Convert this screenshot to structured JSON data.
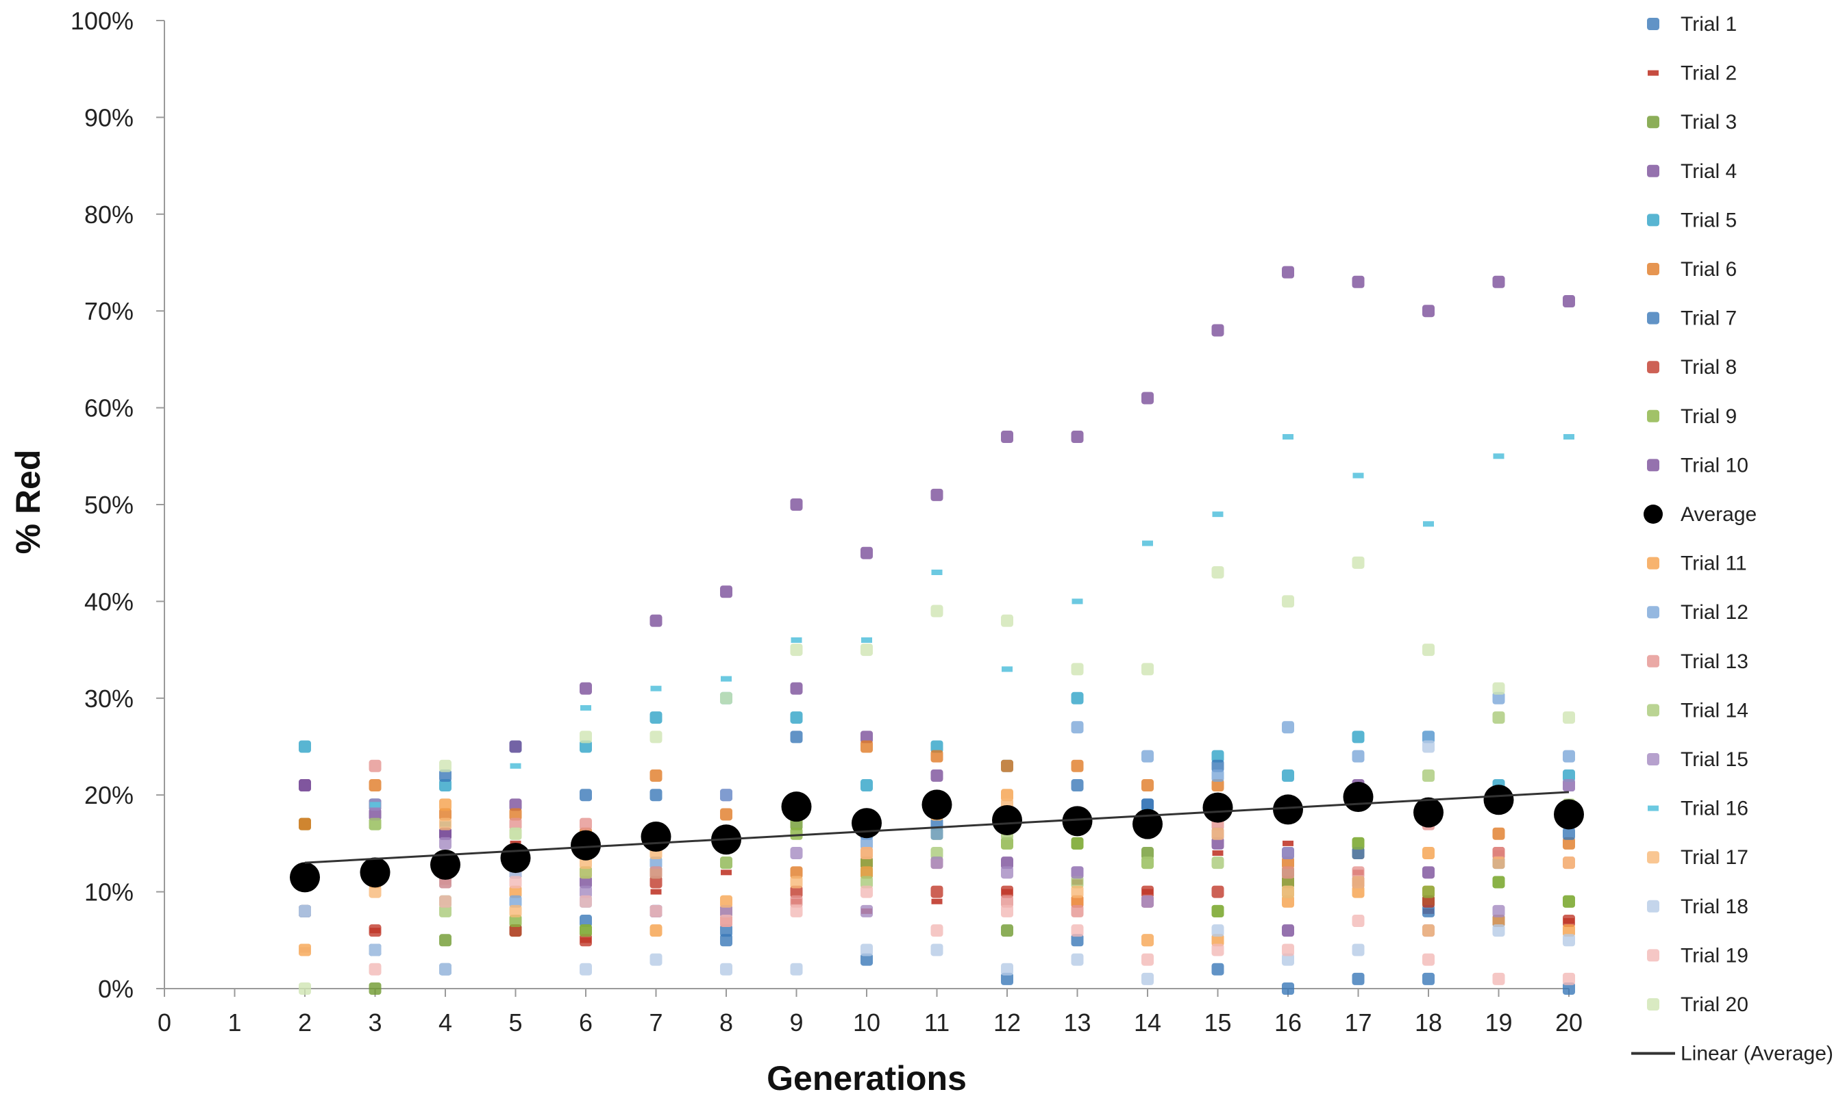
{
  "chart_data": {
    "type": "scatter",
    "xlabel": "Generations",
    "ylabel": "% Red",
    "xlim": [
      0,
      20
    ],
    "ylim": [
      0,
      100
    ],
    "x_ticks": [
      0,
      1,
      2,
      3,
      4,
      5,
      6,
      7,
      8,
      9,
      10,
      11,
      12,
      13,
      14,
      15,
      16,
      17,
      18,
      19,
      20
    ],
    "y_ticks": [
      {
        "value": 0,
        "label": "0%"
      },
      {
        "value": 10,
        "label": "10%"
      },
      {
        "value": 20,
        "label": "20%"
      },
      {
        "value": 30,
        "label": "30%"
      },
      {
        "value": 40,
        "label": "40%"
      },
      {
        "value": 50,
        "label": "50%"
      },
      {
        "value": 60,
        "label": "60%"
      },
      {
        "value": 70,
        "label": "70%"
      },
      {
        "value": 80,
        "label": "80%"
      },
      {
        "value": 90,
        "label": "90%"
      },
      {
        "value": 100,
        "label": "100%"
      }
    ],
    "grid": false,
    "legend_position": "right",
    "x": [
      2,
      3,
      4,
      5,
      6,
      7,
      8,
      9,
      10,
      11,
      12,
      13,
      14,
      15,
      16,
      17,
      18,
      19,
      20
    ],
    "series": [
      {
        "name": "Trial 1",
        "color": "#3a78b8",
        "marker": "square",
        "values": [
          8,
          4,
          2,
          12,
          7,
          20,
          5,
          26,
          3,
          17,
          1,
          5,
          19,
          2,
          0,
          1,
          1,
          13,
          0
        ]
      },
      {
        "name": "Trial 2",
        "color": "#c0392b",
        "marker": "dash",
        "values": [
          4,
          6,
          11,
          15,
          5,
          10,
          12,
          9,
          8,
          9,
          10,
          11,
          10,
          14,
          15,
          12,
          8,
          14,
          7
        ]
      },
      {
        "name": "Trial 3",
        "color": "#6f9a2f",
        "marker": "square",
        "values": [
          17,
          0,
          5,
          6,
          6,
          16,
          13,
          17,
          12,
          16,
          6,
          15,
          14,
          8,
          12,
          15,
          9,
          11,
          9
        ]
      },
      {
        "name": "Trial 4",
        "color": "#7a4f9a",
        "marker": "square",
        "values": [
          21,
          19,
          16,
          19,
          11,
          8,
          20,
          31,
          26,
          22,
          13,
          12,
          9,
          15,
          6,
          21,
          12,
          7,
          21
        ]
      },
      {
        "name": "Trial 5",
        "color": "#2ea3c7",
        "marker": "square",
        "values": [
          25,
          19,
          21,
          25,
          25,
          28,
          30,
          28,
          21,
          25,
          23,
          30,
          18,
          24,
          22,
          26,
          26,
          21,
          22
        ]
      },
      {
        "name": "Trial 6",
        "color": "#e07b26",
        "marker": "square",
        "values": [
          17,
          21,
          18,
          18,
          16,
          22,
          18,
          12,
          25,
          24,
          23,
          23,
          21,
          21,
          13,
          14,
          10,
          16,
          15
        ]
      },
      {
        "name": "Trial 7",
        "color": "#3a78b8",
        "marker": "square",
        "values": [
          8,
          4,
          22,
          12,
          20,
          8,
          6,
          19,
          16,
          18,
          17,
          21,
          19,
          23,
          14,
          14,
          8,
          7,
          16
        ]
      },
      {
        "name": "Trial 8",
        "color": "#c0392b",
        "marker": "square",
        "values": [
          8,
          6,
          12,
          6,
          5,
          11,
          7,
          10,
          13,
          10,
          10,
          9,
          10,
          10,
          11,
          11,
          9,
          14,
          7
        ]
      },
      {
        "name": "Trial 9",
        "color": "#8ab342",
        "marker": "square",
        "values": [
          12,
          17,
          9,
          7,
          6,
          12,
          8,
          16,
          13,
          18,
          15,
          15,
          13,
          8,
          11,
          15,
          10,
          11,
          9
        ]
      },
      {
        "name": "Trial 10",
        "color": "#7a4f9a",
        "marker": "square",
        "values": [
          21,
          18,
          16,
          25,
          31,
          38,
          41,
          50,
          45,
          51,
          57,
          57,
          61,
          68,
          74,
          73,
          70,
          73,
          71
        ]
      },
      {
        "name": "Average",
        "color": "#000000",
        "marker": "circle",
        "values": [
          11.5,
          12,
          12.8,
          13.5,
          14.8,
          15.7,
          15.4,
          18.8,
          17.1,
          19,
          17.4,
          17.3,
          17,
          18.7,
          18.5,
          19.8,
          18.2,
          19.5,
          18
        ]
      },
      {
        "name": "Trial 11",
        "color": "#f5a04a",
        "marker": "square",
        "values": [
          4,
          11,
          19,
          10,
          12,
          6,
          9,
          18,
          12,
          18,
          20,
          9,
          5,
          5,
          9,
          10,
          14,
          7,
          6
        ]
      },
      {
        "name": "Trial 12",
        "color": "#7aa6d8",
        "marker": "square",
        "values": [
          8,
          4,
          11,
          9,
          9,
          13,
          20,
          18,
          15,
          16,
          17,
          27,
          24,
          22,
          27,
          24,
          26,
          30,
          24
        ]
      },
      {
        "name": "Trial 13",
        "color": "#e59490",
        "marker": "square",
        "values": [
          12,
          23,
          11,
          17,
          17,
          12,
          8,
          9,
          14,
          13,
          9,
          8,
          9,
          17,
          12,
          12,
          17,
          14,
          13
        ]
      },
      {
        "name": "Trial 14",
        "color": "#a9c978",
        "marker": "square",
        "values": [
          12,
          17,
          8,
          16,
          12,
          16,
          13,
          19,
          11,
          14,
          16,
          11,
          13,
          13,
          10,
          20,
          22,
          28,
          19
        ]
      },
      {
        "name": "Trial 15",
        "color": "#a48ac0",
        "marker": "square",
        "values": [
          12,
          19,
          15,
          12,
          10,
          8,
          8,
          14,
          8,
          13,
          12,
          12,
          9,
          16,
          14,
          11,
          6,
          8,
          21
        ]
      },
      {
        "name": "Trial 16",
        "color": "#5cc3de",
        "marker": "dash",
        "values": [
          12,
          19,
          17,
          23,
          29,
          31,
          32,
          36,
          36,
          43,
          33,
          40,
          46,
          49,
          57,
          53,
          48,
          55,
          57
        ]
      },
      {
        "name": "Trial 17",
        "color": "#f7b877",
        "marker": "square",
        "values": [
          4,
          10,
          17,
          8,
          13,
          14,
          9,
          11,
          14,
          18,
          19,
          10,
          5,
          16,
          10,
          11,
          6,
          13,
          13
        ]
      },
      {
        "name": "Trial 18",
        "color": "#b5cbe6",
        "marker": "square",
        "values": [
          8,
          4,
          2,
          12,
          2,
          3,
          2,
          2,
          4,
          4,
          2,
          3,
          1,
          6,
          3,
          4,
          25,
          6,
          5
        ]
      },
      {
        "name": "Trial 19",
        "color": "#f2b9b6",
        "marker": "square",
        "values": [
          12,
          2,
          9,
          11,
          9,
          8,
          7,
          8,
          10,
          6,
          8,
          6,
          3,
          4,
          4,
          7,
          3,
          1,
          1
        ]
      },
      {
        "name": "Trial 20",
        "color": "#cfe5b3",
        "marker": "square",
        "values": [
          0,
          12,
          23,
          16,
          26,
          26,
          30,
          35,
          35,
          39,
          38,
          33,
          33,
          43,
          40,
          44,
          35,
          31,
          28
        ]
      }
    ],
    "trendline": {
      "name": "Linear (Average)",
      "of": "Average",
      "color": "#333333",
      "x": [
        2,
        20
      ],
      "y": [
        13.0,
        20.3
      ]
    }
  }
}
